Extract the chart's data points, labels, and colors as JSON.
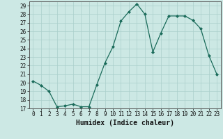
{
  "x": [
    0,
    1,
    2,
    3,
    4,
    5,
    6,
    7,
    8,
    9,
    10,
    11,
    12,
    13,
    14,
    15,
    16,
    17,
    18,
    19,
    20,
    21,
    22,
    23
  ],
  "y": [
    20.2,
    19.7,
    19.0,
    17.2,
    17.3,
    17.5,
    17.2,
    17.2,
    19.8,
    22.3,
    24.2,
    27.2,
    28.3,
    29.2,
    28.0,
    23.6,
    25.8,
    27.8,
    27.8,
    27.8,
    27.3,
    26.3,
    23.2,
    21.0
  ],
  "xlabel": "Humidex (Indice chaleur)",
  "xlim": [
    -0.5,
    23.5
  ],
  "ylim": [
    17,
    29.5
  ],
  "yticks": [
    17,
    18,
    19,
    20,
    21,
    22,
    23,
    24,
    25,
    26,
    27,
    28,
    29
  ],
  "xticks": [
    0,
    1,
    2,
    3,
    4,
    5,
    6,
    7,
    8,
    9,
    10,
    11,
    12,
    13,
    14,
    15,
    16,
    17,
    18,
    19,
    20,
    21,
    22,
    23
  ],
  "line_color": "#1a6b5a",
  "marker": "D",
  "marker_size": 2.0,
  "bg_color": "#cce8e4",
  "grid_color": "#aacfcb",
  "tick_fontsize": 5.5,
  "xlabel_fontsize": 7.0,
  "linewidth": 0.9
}
